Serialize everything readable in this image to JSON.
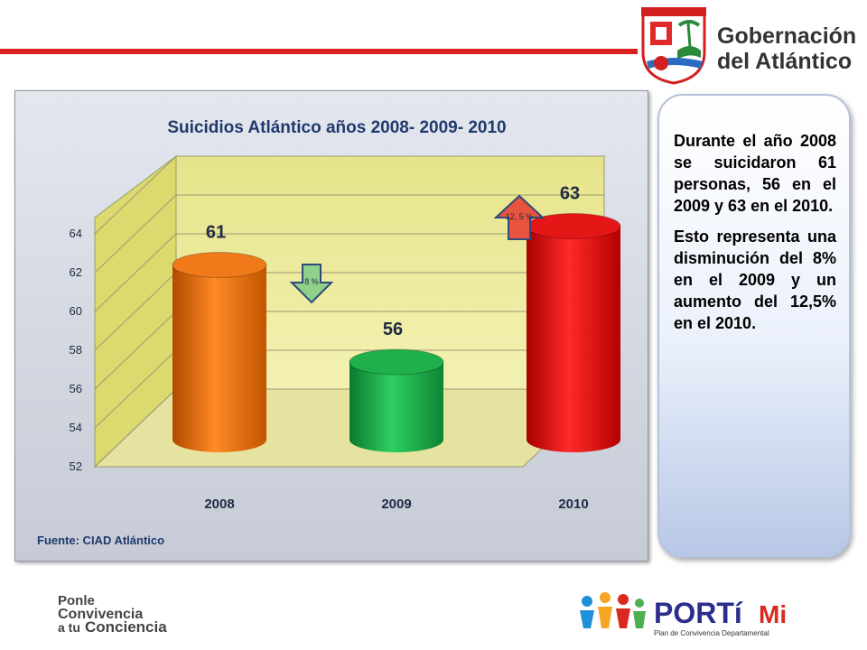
{
  "header": {
    "brand_line1": "Gobernación",
    "brand_line2": "del Atlántico"
  },
  "chart_data": {
    "type": "bar",
    "title": "Suicidios Atlántico años 2008- 2009- 2010",
    "categories": [
      "2008",
      "2009",
      "2010"
    ],
    "values": [
      61,
      56,
      63
    ],
    "data_labels": [
      "61",
      "56",
      "63"
    ],
    "colors": [
      "#f07a1a",
      "#1fb04c",
      "#e51616"
    ],
    "ylim": [
      52,
      64
    ],
    "yticks": [
      52,
      54,
      56,
      58,
      60,
      62,
      64
    ],
    "grid": true,
    "style": "3d-cylinder",
    "annotations": [
      {
        "text": "8 %",
        "direction": "down",
        "color": "#8fd08a"
      },
      {
        "text": "12, 5 %",
        "direction": "up",
        "color": "#e8533e"
      }
    ],
    "source": "Fuente: CIAD Atlántico"
  },
  "side_text": {
    "paragraph1": "Durante el año 2008 se suicidaron 61 personas, 56 en el 2009 y 63 en el 2010.",
    "paragraph2": "Esto representa una disminución del 8% en el 2009 y un aumento del 12,5% en el 2010."
  },
  "footer": {
    "ponle_line1": "Ponle",
    "ponle_line2": "Convivencia",
    "ponle_line3a": "a tu",
    "ponle_line3b": "Conciencia",
    "portimi_word": "PORTí",
    "portimi_mi": "Mi",
    "portimi_sub": "Plan de Convivencia Departamental"
  }
}
